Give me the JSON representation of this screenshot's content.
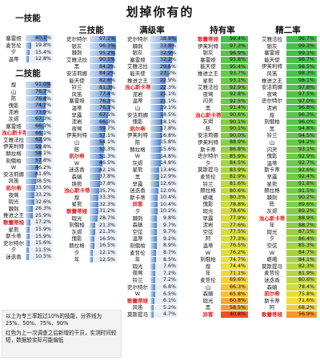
{
  "title": "划掉你有的",
  "colors": {
    "bar_light": "#cfe0f3",
    "bar_dark": "#4f7fc6",
    "rate_red": "#f04a2a",
    "rate_yellow": "#f5e23c",
    "rate_green": "#3fbf4f",
    "name_red": "#e02020"
  },
  "columns": {
    "skill1": {
      "title": "一技能",
      "entries": [
        {
          "name": "塞雷娅",
          "value": "80.1%",
          "pct": 80.1
        },
        {
          "name": "麦哲伦",
          "value": "19.8%",
          "pct": 19.8
        },
        {
          "name": "夕",
          "value": "15.4%",
          "pct": 15.4
        },
        {
          "name": "温蒂",
          "value": "12.8%",
          "pct": 12.8
        }
      ]
    },
    "skill2": {
      "title": "二技能",
      "entries": [
        {
          "name": "煌",
          "value": "91.0%",
          "pct": 91.0
        },
        {
          "name": "山",
          "value": "76.7%",
          "pct": 76.7
        },
        {
          "name": "陈",
          "value": "76.4%",
          "pct": 76.4
        },
        {
          "name": "傀影",
          "value": "74.7%",
          "pct": 74.7
        },
        {
          "name": "泥岩",
          "value": "73.9%",
          "pct": 73.9
        },
        {
          "name": "灰烬",
          "value": "67.3%",
          "pct": 67.3
        },
        {
          "name": "塞雷娅",
          "value": "66.3%",
          "pct": 66.3
        },
        {
          "name": "浊心斯卡蒂",
          "value": "66.1%",
          "pct": 66.1,
          "red": true
        },
        {
          "name": "艾雅法拉",
          "value": "62.9%",
          "pct": 62.9
        },
        {
          "name": "伊芙利特",
          "value": "59.8%",
          "pct": 59.8
        },
        {
          "name": "赫拉格",
          "value": "58.1%",
          "pct": 58.1
        },
        {
          "name": "刻俄柏",
          "value": "57.8%",
          "pct": 57.8
        },
        {
          "name": "W",
          "value": "46.2%",
          "pct": 46.2
        },
        {
          "name": "安洁莉娜",
          "value": "41.6%",
          "pct": 41.6
        },
        {
          "name": "风笛",
          "value": "38.5%",
          "pct": 38.5
        },
        {
          "name": "凯尔希",
          "value": "33.9%",
          "pct": 33.9,
          "red": true
        },
        {
          "name": "夜莺",
          "value": "33.2%",
          "pct": 33.2
        },
        {
          "name": "瑕光",
          "value": "32.6%",
          "pct": 32.6
        },
        {
          "name": "棘刺",
          "value": "26.3%",
          "pct": 26.3
        },
        {
          "name": "推进之王",
          "value": "25.9%",
          "pct": 25.9
        },
        {
          "name": "歌蕾蒂娅",
          "value": "17.2%",
          "pct": 17.2,
          "red": true
        },
        {
          "name": "星熊",
          "value": "15.9%",
          "pct": 15.9
        },
        {
          "name": "斯卡蒂",
          "value": "15.9%",
          "pct": 15.9
        },
        {
          "name": "史尔特尔",
          "value": "15.6%",
          "pct": 15.6
        },
        {
          "name": "夕",
          "value": "11.5%",
          "pct": 11.5
        },
        {
          "name": "迷迭香",
          "value": "10.5%",
          "pct": 10.5
        }
      ]
    },
    "skill3": {
      "title": "三技能",
      "entries": [
        {
          "name": "史尔特尔",
          "value": "97.2%",
          "pct": 97.2
        },
        {
          "name": "银灰",
          "value": "96.3%",
          "pct": 96.3
        },
        {
          "name": "棘刺",
          "value": "95.2%",
          "pct": 95.2
        },
        {
          "name": "艾雅法拉",
          "value": "90.1%",
          "pct": 90.1
        },
        {
          "name": "黑",
          "value": "84.3%",
          "pct": 84.3
        },
        {
          "name": "安洁莉娜",
          "value": "84.2%",
          "pct": 84.2
        },
        {
          "name": "能天使",
          "value": "82.6%",
          "pct": 82.6
        },
        {
          "name": "铃兰",
          "value": "81.3%",
          "pct": 81.3
        },
        {
          "name": "风笛",
          "value": "77.4%",
          "pct": 77.4
        },
        {
          "name": "塞雷娅",
          "value": "76.3%",
          "pct": 76.3
        },
        {
          "name": "温蒂",
          "value": "76.1%",
          "pct": 76.1
        },
        {
          "name": "早露",
          "value": "67.5%",
          "pct": 67.5
        },
        {
          "name": "泥岩",
          "value": "66.3%",
          "pct": 66.3
        },
        {
          "name": "夜莺",
          "value": "59.7%",
          "pct": 59.7
        },
        {
          "name": "伊芙利特",
          "value": "57.1%",
          "pct": 57.1
        },
        {
          "name": "山",
          "value": "54.1%",
          "pct": 54.1
        },
        {
          "name": "陈",
          "value": "53.3%",
          "pct": 53.3
        },
        {
          "name": "凯尔希",
          "value": "51.3%",
          "pct": 51.3,
          "red": true
        },
        {
          "name": "W",
          "value": "46.5%",
          "pct": 46.5
        },
        {
          "name": "迷迭香",
          "value": "42.1%",
          "pct": 42.1
        },
        {
          "name": "森蚺",
          "value": "37.8%",
          "pct": 37.8
        },
        {
          "name": "铸熊",
          "value": "37.8%",
          "pct": 37.8
        },
        {
          "name": "浊心斯卡蒂",
          "value": "35.7%",
          "pct": 35.7,
          "red": true
        },
        {
          "name": "煌",
          "value": "33.3%",
          "pct": 33.3
        },
        {
          "name": "星熊",
          "value": "32.3%",
          "pct": 32.3
        },
        {
          "name": "歌蕾蒂娅",
          "value": "31.2%",
          "pct": 31.2,
          "red": true
        },
        {
          "name": "瑕光",
          "value": "28.7%",
          "pct": 28.7
        },
        {
          "name": "刻俄柏",
          "value": "21.3%",
          "pct": 21.3
        },
        {
          "name": "灰烬",
          "value": "21.3%",
          "pct": 21.3
        },
        {
          "name": "傀影",
          "value": "16.5%",
          "pct": 16.5
        },
        {
          "name": "赫拉格",
          "value": "16.5%",
          "pct": 16.5
        },
        {
          "name": "夕",
          "value": "12.1%",
          "pct": 12.1
        },
        {
          "name": "年",
          "value": "12.5%",
          "pct": 12.5
        }
      ]
    },
    "maxlevel": {
      "title": "满级率",
      "entries": [
        {
          "name": "史尔特尔",
          "value": "38.8%",
          "pct": 38.8
        },
        {
          "name": "棘刺",
          "value": "33.8%",
          "pct": 33.8
        },
        {
          "name": "银灰",
          "value": "32.9%",
          "pct": 32.9
        },
        {
          "name": "塞雷娅",
          "value": "32.2%",
          "pct": 32.2
        },
        {
          "name": "艾雅法拉",
          "value": "29.6%",
          "pct": 29.6
        },
        {
          "name": "能天使",
          "value": "27.2%",
          "pct": 27.2
        },
        {
          "name": "推进之王",
          "value": "22.9%",
          "pct": 22.9
        },
        {
          "name": "浊心斯卡蒂",
          "value": "22.3%",
          "pct": 22.3,
          "red": true
        },
        {
          "name": "泥岩",
          "value": "21.1%",
          "pct": 21.1
        },
        {
          "name": "温蒂",
          "value": "21.1%",
          "pct": 21.1
        },
        {
          "name": "山",
          "value": "19.1%",
          "pct": 19.1
        },
        {
          "name": "安洁莉娜",
          "value": "18.5%",
          "pct": 18.5
        },
        {
          "name": "傀影",
          "value": "18.1%",
          "pct": 18.1
        },
        {
          "name": "凯尔希",
          "value": "17.8%",
          "pct": 17.8,
          "red": true
        },
        {
          "name": "伊芙利特",
          "value": "16.8%",
          "pct": 16.8
        },
        {
          "name": "陈",
          "value": "15.8%",
          "pct": 15.8
        },
        {
          "name": "赫拉格",
          "value": "15.6%",
          "pct": 15.6
        },
        {
          "name": "W",
          "value": "14.8%",
          "pct": 14.8
        },
        {
          "name": "灰烬",
          "value": "14.8%",
          "pct": 14.8
        },
        {
          "name": "星熊",
          "value": "13.4%",
          "pct": 13.4
        },
        {
          "name": "黑",
          "value": "12.9%",
          "pct": 12.9
        },
        {
          "name": "早露",
          "value": "12.6%",
          "pct": 12.6
        },
        {
          "name": "迷迭香",
          "value": "12.0%",
          "pct": 12.0
        },
        {
          "name": "斯卡蒂",
          "value": "10.4%",
          "pct": 10.4
        },
        {
          "name": "异客",
          "value": "10.4%",
          "pct": 10.4,
          "red": true
        },
        {
          "name": "夕",
          "value": "10.2%",
          "pct": 10.2
        },
        {
          "name": "棘刺",
          "value": "9.8%",
          "pct": 9.8
        },
        {
          "name": "森蚺",
          "value": "9.7%",
          "pct": 9.7
        },
        {
          "name": "空弦",
          "value": "9.7%",
          "pct": 9.7
        },
        {
          "name": "温蒂",
          "value": "9.2%",
          "pct": 9.2
        },
        {
          "name": "刻俄柏",
          "value": "8.9%",
          "pct": 8.9
        },
        {
          "name": "麦哲伦",
          "value": "8.7%",
          "pct": 8.7
        },
        {
          "name": "年",
          "value": "8.5%",
          "pct": 8.5
        },
        {
          "name": "瑕光",
          "value": "7.6%",
          "pct": 7.6
        },
        {
          "name": "夜莺",
          "value": "7.2%",
          "pct": 7.2
        },
        {
          "name": "铃兰",
          "value": "7.2%",
          "pct": 7.2
        },
        {
          "name": "史尔特尔",
          "value": "6.8%",
          "pct": 6.8
        },
        {
          "name": "W",
          "value": "6.5%",
          "pct": 6.5
        },
        {
          "name": "歌蕾蒂娅",
          "value": "6.1%",
          "pct": 6.1,
          "red": true
        },
        {
          "name": "风笛",
          "value": "5.2%",
          "pct": 5.2
        },
        {
          "name": "莫斯提马",
          "value": "4.7%",
          "pct": 4.7
        }
      ]
    },
    "ownership": {
      "title": "持有率",
      "entries": [
        {
          "name": "歌蕾蒂娅",
          "value": "99.4%",
          "pct": 99.4,
          "red": true
        },
        {
          "name": "伊芙利特",
          "value": "97.3%",
          "pct": 97.3
        },
        {
          "name": "银灰",
          "value": "96.9%",
          "pct": 96.9
        },
        {
          "name": "塞雷娅",
          "value": "95.8%",
          "pct": 95.8
        },
        {
          "name": "能天使",
          "value": "95.4%",
          "pct": 95.4
        },
        {
          "name": "推进之王",
          "value": "93.7%",
          "pct": 93.7
        },
        {
          "name": "星熊",
          "value": "93.1%",
          "pct": 93.1
        },
        {
          "name": "艾雅法拉",
          "value": "92.9%",
          "pct": 92.9
        },
        {
          "name": "夜莺",
          "value": "92.8%",
          "pct": 92.8
        },
        {
          "name": "闪灵",
          "value": "92.5%",
          "pct": 92.5
        },
        {
          "name": "黑",
          "value": "91.4%",
          "pct": 91.4
        },
        {
          "name": "浊心斯卡蒂",
          "value": "90.6%",
          "pct": 90.6,
          "red": true
        },
        {
          "name": "灰烬",
          "value": "90.1%",
          "pct": 90.1
        },
        {
          "name": "陈",
          "value": "90.1%",
          "pct": 90.1
        },
        {
          "name": "安洁莉娜",
          "value": "90.0%",
          "pct": 90.0
        },
        {
          "name": "伊芙利特",
          "value": "88.9%",
          "pct": 88.9
        },
        {
          "name": "斯卡蒂",
          "value": "86.8%",
          "pct": 86.8
        },
        {
          "name": "史尔特尔",
          "value": "85.9%",
          "pct": 85.9
        },
        {
          "name": "夕",
          "value": "84.5%",
          "pct": 84.5
        },
        {
          "name": "莫斯提马",
          "value": "83.9%",
          "pct": 83.9
        },
        {
          "name": "麦哲伦",
          "value": "82.9%",
          "pct": 82.9
        },
        {
          "name": "铃兰",
          "value": "81.6%",
          "pct": 81.6
        },
        {
          "name": "赫拉格",
          "value": "80.6%",
          "pct": 80.6
        },
        {
          "name": "嵯峨",
          "value": "80.3%",
          "pct": 80.3
        },
        {
          "name": "傀影",
          "value": "78.8%",
          "pct": 78.8
        },
        {
          "name": "瑕光",
          "value": "78.6%",
          "pct": 78.6
        },
        {
          "name": "早露",
          "value": "77.9%",
          "pct": 77.9
        },
        {
          "name": "泥岩",
          "value": "77.6%",
          "pct": 77.6
        },
        {
          "name": "空弦",
          "value": "77.5%",
          "pct": 77.5
        },
        {
          "name": "阿",
          "value": "77.3%",
          "pct": 77.3
        },
        {
          "name": "温蒂",
          "value": "76.5%",
          "pct": 76.5
        },
        {
          "name": "W",
          "value": "76.2%",
          "pct": 76.2
        },
        {
          "name": "刻俄柏",
          "value": "74.7%",
          "pct": 74.7
        },
        {
          "name": "煌",
          "value": "74.4%",
          "pct": 74.4
        },
        {
          "name": "年",
          "value": "71.1%",
          "pct": 71.1
        },
        {
          "name": "麦哲伦",
          "value": "69.6%",
          "pct": 69.6
        },
        {
          "name": "山",
          "value": "66.3%",
          "pct": 66.3
        },
        {
          "name": "森蚺",
          "value": "65.8%",
          "pct": 65.8
        },
        {
          "name": "瑕光",
          "value": "60.8%",
          "pct": 60.8
        },
        {
          "name": "黑",
          "value": "58.5%",
          "pct": 58.5
        },
        {
          "name": "异客",
          "value": "40.8%",
          "pct": 40.8,
          "red": true
        }
      ]
    },
    "elite2": {
      "title": "精二率",
      "entries": [
        {
          "name": "艾雅法拉",
          "value": "99.7%",
          "pct": 99.7
        },
        {
          "name": "银灰",
          "value": "99.3%",
          "pct": 99.3
        },
        {
          "name": "塞雷娅",
          "value": "99.1%",
          "pct": 99.1
        },
        {
          "name": "能天使",
          "value": "98.7%",
          "pct": 98.7
        },
        {
          "name": "伊芙利特",
          "value": "98.5%",
          "pct": 98.5
        },
        {
          "name": "风笛",
          "value": "98.3%",
          "pct": 98.3
        },
        {
          "name": "推进之王",
          "value": "98.1%",
          "pct": 98.1
        },
        {
          "name": "安洁莉娜",
          "value": "97.8%",
          "pct": 97.8
        },
        {
          "name": "夜莺",
          "value": "97.5%",
          "pct": 97.5
        },
        {
          "name": "史尔特尔",
          "value": "97.0%",
          "pct": 97.0
        },
        {
          "name": "泥岩",
          "value": "96.8%",
          "pct": 96.8
        },
        {
          "name": "煌",
          "value": "96.3%",
          "pct": 96.3
        },
        {
          "name": "刻俄柏",
          "value": "96.0%",
          "pct": 96.0
        },
        {
          "name": "黑",
          "value": "94.8%",
          "pct": 94.8
        },
        {
          "name": "铃兰",
          "value": "94.5%",
          "pct": 94.5
        },
        {
          "name": "山",
          "value": "94.2%",
          "pct": 94.2
        },
        {
          "name": "闪灵",
          "value": "93.1%",
          "pct": 93.1
        },
        {
          "name": "傀影",
          "value": "92.9%",
          "pct": 92.9
        },
        {
          "name": "温蒂",
          "value": "92.7%",
          "pct": 92.7
        },
        {
          "name": "斯卡蒂",
          "value": "92.6%",
          "pct": 92.6
        },
        {
          "name": "早露",
          "value": "92.4%",
          "pct": 92.4
        },
        {
          "name": "星熊",
          "value": "91.8%",
          "pct": 91.8
        },
        {
          "name": "赫拉格",
          "value": "91.5%",
          "pct": 91.5
        },
        {
          "name": "棘刺",
          "value": "90.2%",
          "pct": 90.2
        },
        {
          "name": "陈",
          "value": "89.6%",
          "pct": 89.6
        },
        {
          "name": "灰烬",
          "value": "89.2%",
          "pct": 89.2
        },
        {
          "name": "浊心斯卡蒂",
          "value": "88.9%",
          "pct": 88.9,
          "red": true
        },
        {
          "name": "年",
          "value": "88.7%",
          "pct": 88.7
        },
        {
          "name": "瑕光",
          "value": "87.1%",
          "pct": 87.1
        },
        {
          "name": "夕",
          "value": "86.4%",
          "pct": 86.4
        },
        {
          "name": "空弦",
          "value": "85.3%",
          "pct": 85.3
        },
        {
          "name": "W",
          "value": "84.7%",
          "pct": 84.7
        },
        {
          "name": "嵯峨",
          "value": "84.1%",
          "pct": 84.1
        },
        {
          "name": "莫斯提马",
          "value": "82.3%",
          "pct": 82.3
        },
        {
          "name": "麦哲伦",
          "value": "81.9%",
          "pct": 81.9
        },
        {
          "name": "迷迭香",
          "value": "80.6%",
          "pct": 80.6
        },
        {
          "name": "森蚺",
          "value": "78.4%",
          "pct": 78.4
        },
        {
          "name": "凯尔希",
          "value": "75.8%",
          "pct": 75.8,
          "red": true
        },
        {
          "name": "斯卡蒂",
          "value": "71.6%",
          "pct": 71.6
        },
        {
          "name": "阿",
          "value": "68.2%",
          "pct": 68.2
        },
        {
          "name": "歌蕾蒂娅",
          "value": "56.9%",
          "pct": 56.9,
          "red": true
        }
      ]
    }
  },
  "note": {
    "line1": "以上为专三率超过10%的技能，分界线为25%、50%、75%、90%",
    "line2": "红色为上一次调查之后新增的干员，实测时间较短，数据较实际可能偏低"
  }
}
